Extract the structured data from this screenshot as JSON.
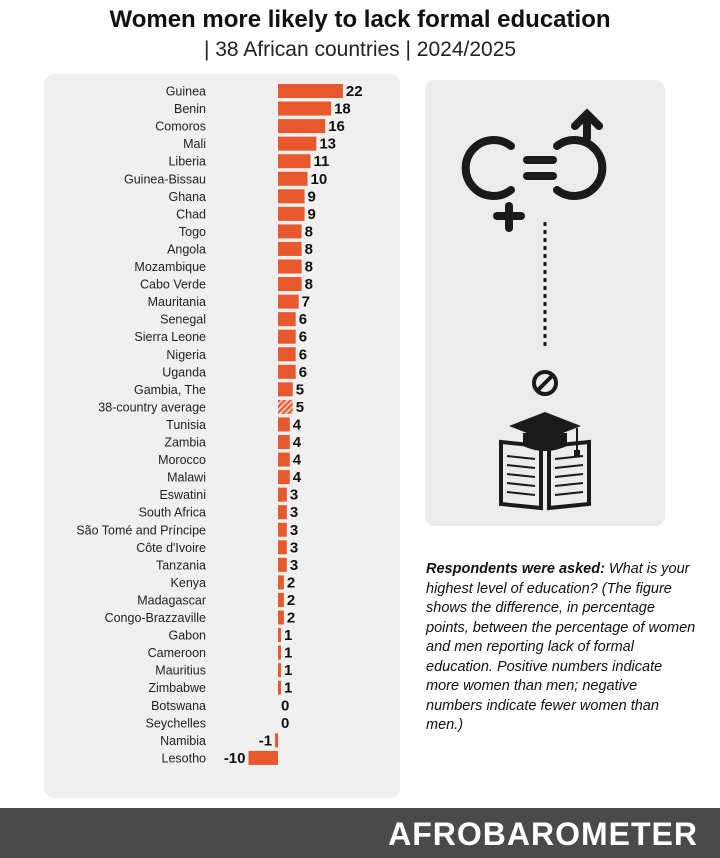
{
  "chart_data": {
    "type": "bar",
    "orientation": "horizontal",
    "title": "Women more likely to lack formal education",
    "subtitle": "| 38 African countries | 2024/2025",
    "xlabel": "",
    "ylabel": "",
    "unit": "percentage points",
    "categories": [
      "Guinea",
      "Benin",
      "Comoros",
      "Mali",
      "Liberia",
      "Guinea-Bissau",
      "Ghana",
      "Chad",
      "Togo",
      "Angola",
      "Mozambique",
      "Cabo Verde",
      "Mauritania",
      "Senegal",
      "Sierra Leone",
      "Nigeria",
      "Uganda",
      "Gambia, The",
      "38-country average",
      "Tunisia",
      "Zambia",
      "Morocco",
      "Malawi",
      "Eswatini",
      "South Africa",
      "São Tomé and Príncipe",
      "Côte d'Ivoire",
      "Tanzania",
      "Kenya",
      "Madagascar",
      "Congo-Brazzaville",
      "Gabon",
      "Cameroon",
      "Mauritius",
      "Zimbabwe",
      "Botswana",
      "Seychelles",
      "Namibia",
      "Lesotho"
    ],
    "values": [
      22,
      18,
      16,
      13,
      11,
      10,
      9,
      9,
      8,
      8,
      8,
      8,
      7,
      6,
      6,
      6,
      6,
      5,
      5,
      4,
      4,
      4,
      4,
      3,
      3,
      3,
      3,
      3,
      2,
      2,
      2,
      1,
      1,
      1,
      1,
      0,
      0,
      -1,
      -10
    ],
    "highlight_category": "38-country average",
    "bar_color": "#e8582e",
    "average_pattern": "hatched"
  },
  "note": {
    "lead": "Respondents were asked:",
    "question": " What is your highest level of education?",
    "explanation": "(The figure shows the difference, in percentage points, between the percentage of women and men reporting lack of formal education. Positive numbers indicate more women than men; negative numbers indicate fewer women than men.)"
  },
  "icons": [
    "gender-equality-icon",
    "no-symbol-icon",
    "graduation-book-icon"
  ],
  "brand": "AFROBAROMETER",
  "colors": {
    "accent": "#e8582e",
    "panel": "#f0f0f0",
    "footer": "#4a4a4a"
  }
}
